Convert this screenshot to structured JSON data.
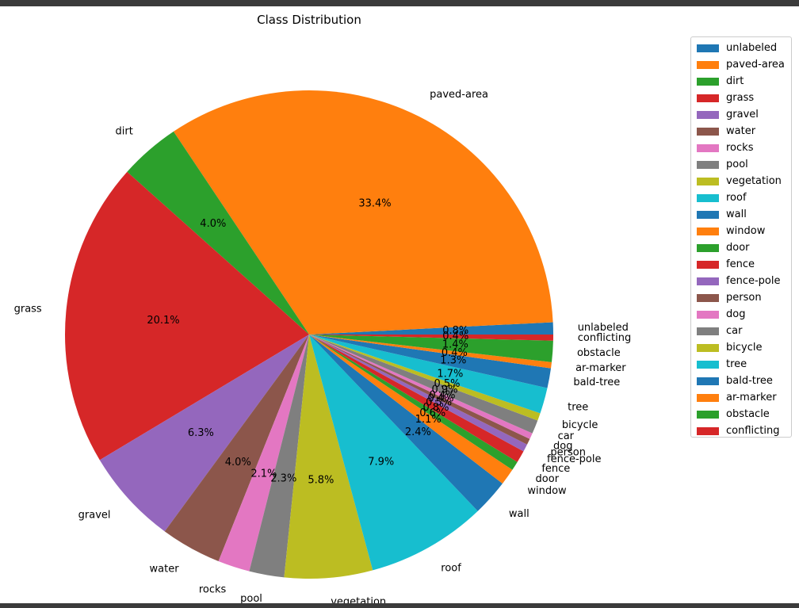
{
  "chart_data": {
    "type": "pie",
    "title": "Class Distribution",
    "labels": [
      "unlabeled",
      "paved-area",
      "dirt",
      "grass",
      "gravel",
      "water",
      "rocks",
      "pool",
      "vegetation",
      "roof",
      "wall",
      "window",
      "door",
      "fence",
      "fence-pole",
      "person",
      "dog",
      "car",
      "bicycle",
      "tree",
      "bald-tree",
      "ar-marker",
      "obstacle",
      "conflicting"
    ],
    "values": [
      0.8,
      33.4,
      4.0,
      20.1,
      6.3,
      4.0,
      2.1,
      2.3,
      5.8,
      7.9,
      2.4,
      1.1,
      0.6,
      0.8,
      0.5,
      0.4,
      0.4,
      0.9,
      0.5,
      1.7,
      1.3,
      0.4,
      1.4,
      0.4
    ],
    "pct_labels": [
      "0.8%",
      "33.4%",
      "4.0%",
      "20.1%",
      "6.3%",
      "4.0%",
      "2.1%",
      "2.3%",
      "5.8%",
      "7.9%",
      "2.4%",
      "1.1%",
      "0.6%",
      "0.8%",
      "0.5%",
      "0.4%",
      "0.4%",
      "0.9%",
      "0.5%",
      "1.7%",
      "1.3%",
      "0.4%",
      "1.4%",
      "0.4%"
    ],
    "colors": [
      "#1f77b4",
      "#ff7f0e",
      "#2ca02c",
      "#d62728",
      "#9467bd",
      "#8c564b",
      "#e377c2",
      "#7f7f7f",
      "#bcbd22",
      "#17becf",
      "#1f77b4",
      "#ff7f0e",
      "#2ca02c",
      "#d62728",
      "#9467bd",
      "#8c564b",
      "#e377c2",
      "#7f7f7f",
      "#bcbd22",
      "#17becf",
      "#1f77b4",
      "#ff7f0e",
      "#2ca02c",
      "#d62728"
    ],
    "start_angle_deg": 0,
    "direction": "counterclockwise",
    "legend_position": "right"
  }
}
